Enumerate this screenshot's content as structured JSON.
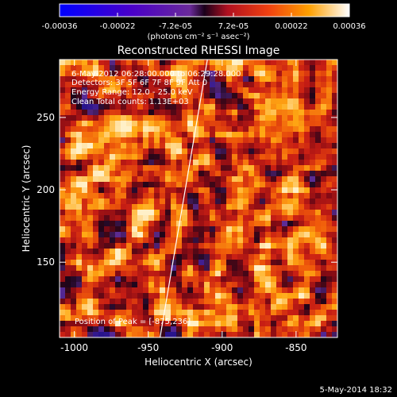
{
  "colorbar": {
    "tick_labels": [
      "-0.00036",
      "-0.00022",
      "-7.2e-05",
      "7.2e-05",
      "0.00022",
      "0.00036"
    ],
    "units": "(photons cm⁻² s⁻¹ asec⁻²)",
    "vmin": -0.00036,
    "vmax": 0.00036
  },
  "title": "Reconstructed RHESSI Image",
  "annotations": {
    "time_range": "6-May-2012 06:28:00.000 to 06:29:28.000",
    "detectors": "Detectors: 3F 5F 6F 7F 8F 9F Att 0",
    "energy": "Energy Range: 12.0 - 25.0 keV",
    "clean": "Clean     Total counts: 1.13E+03",
    "peak": "Position of Peak = [-875,236]"
  },
  "axes": {
    "xlabel": "Heliocentric X (arcsec)",
    "ylabel": "Heliocentric Y (arcsec)",
    "x_ticks": [
      {
        "value": -1000,
        "label": "-1000"
      },
      {
        "value": -950,
        "label": "-950"
      },
      {
        "value": -900,
        "label": "-900"
      },
      {
        "value": -850,
        "label": "-850"
      }
    ],
    "y_ticks": [
      {
        "value": 150,
        "label": "150"
      },
      {
        "value": 200,
        "label": "200"
      },
      {
        "value": 250,
        "label": "250"
      }
    ],
    "xlim": [
      -1010,
      -822
    ],
    "ylim": [
      98,
      290
    ]
  },
  "limb": {
    "points": [
      [
        -942,
        98
      ],
      [
        -910,
        290
      ]
    ]
  },
  "timestamp": "5-May-2014 18:32",
  "colors": {
    "background": "#000000",
    "foreground": "#ffffff"
  }
}
